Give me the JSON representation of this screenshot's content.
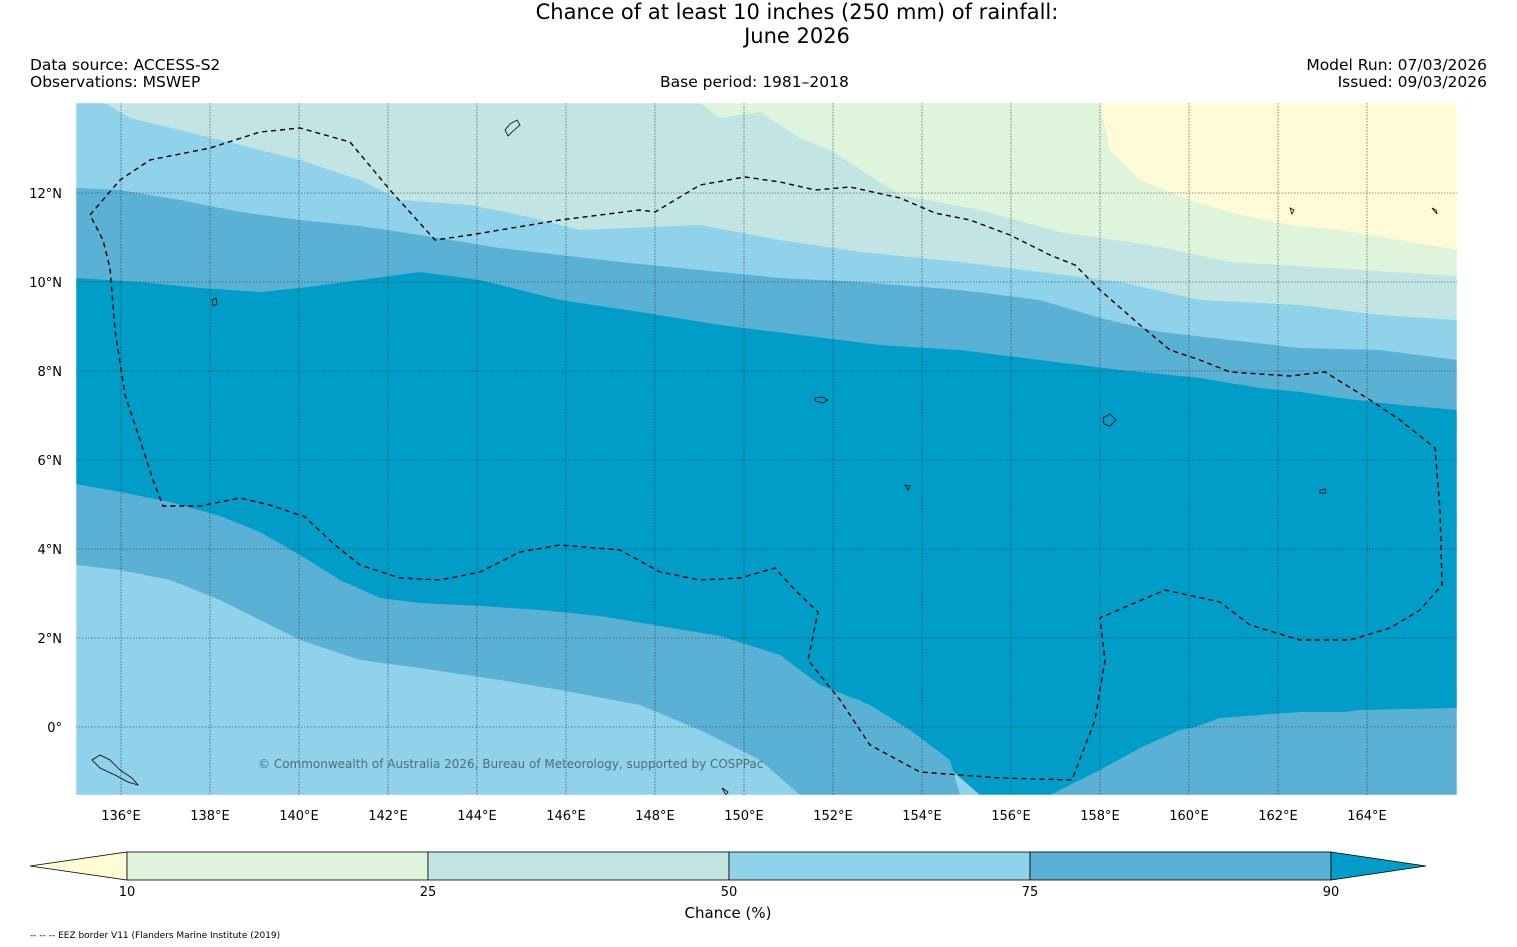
{
  "title": {
    "line1": "Chance of at least 10 inches (250  mm) of rainfall:",
    "line2": "June 2026"
  },
  "header": {
    "data_source": "Data source: ACCESS-S2",
    "observations": "Observations: MSWEP",
    "base_period": "Base period: 1981–2018",
    "model_run": "Model Run: 07/03/2026",
    "issued": "Issued: 09/03/2026"
  },
  "map": {
    "lat_labels": [
      "12°N",
      "10°N",
      "8°N",
      "6°N",
      "4°N",
      "2°N",
      "0°"
    ],
    "lon_labels": [
      "136°E",
      "138°E",
      "140°E",
      "142°E",
      "144°E",
      "146°E",
      "148°E",
      "150°E",
      "152°E",
      "154°E",
      "156°E",
      "158°E",
      "160°E",
      "162°E",
      "164°E"
    ],
    "copyright": "© Commonwealth of Australia 2026, Bureau of Meteorology, supported by COSPPac",
    "colors": {
      "below_10": "#fffbd6",
      "c10_25": "#def5dc",
      "c25_50": "#c2e5e4",
      "c50_75": "#8fd2e9",
      "c75_90": "#5bb1d4",
      "above_90": "#009dc9"
    }
  },
  "colorbar": {
    "ticks": [
      "10",
      "25",
      "50",
      "75",
      "90"
    ],
    "label": "Chance (%)"
  },
  "footnote": "-- -- -- EEZ border V11 (Flanders Marine Institute (2019)"
}
